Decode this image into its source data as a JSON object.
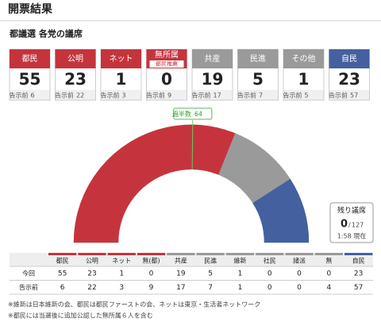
{
  "header": {
    "title": "開票結果"
  },
  "section": {
    "title": "都議選 各党の議席"
  },
  "prev_label": "告示前",
  "cards": [
    {
      "name": "都民",
      "seats": 55,
      "prev": 6,
      "color": "#c5343d"
    },
    {
      "name": "公明",
      "seats": 23,
      "prev": 22,
      "color": "#c5343d"
    },
    {
      "name": "ネット",
      "seats": 1,
      "prev": 3,
      "color": "#c5343d"
    },
    {
      "name": "無所属",
      "sub": "都民推薦",
      "seats": 0,
      "prev": 9,
      "color": "#c5343d"
    },
    {
      "name": "共産",
      "seats": 19,
      "prev": 17,
      "color": "#9a9a9a"
    },
    {
      "name": "民進",
      "seats": 5,
      "prev": 7,
      "color": "#9a9a9a"
    },
    {
      "name": "その他",
      "seats": 1,
      "prev": 5,
      "color": "#9a9a9a"
    },
    {
      "name": "自民",
      "seats": 23,
      "prev": 57,
      "color": "#44609f"
    }
  ],
  "majority": {
    "label": "過半数",
    "value": 64
  },
  "remaining": {
    "title": "残り議席",
    "value": 0,
    "separator": "/",
    "total": 127,
    "time": "1:58 現在"
  },
  "table": {
    "columns": [
      "都民",
      "公明",
      "ネット",
      "無(都)",
      "共産",
      "民進",
      "維新",
      "社民",
      "諸派",
      "無",
      "自民"
    ],
    "column_colors": [
      "#c5343d",
      "#c5343d",
      "#c5343d",
      "#c5343d",
      "#9a9a9a",
      "#9a9a9a",
      "#9a9a9a",
      "#9a9a9a",
      "#9a9a9a",
      "#9a9a9a",
      "#44609f"
    ],
    "rows": [
      {
        "label": "今回",
        "values": [
          55,
          23,
          1,
          0,
          19,
          5,
          1,
          0,
          0,
          0,
          23
        ]
      },
      {
        "label": "告示前",
        "values": [
          6,
          22,
          3,
          9,
          17,
          7,
          1,
          0,
          0,
          4,
          57
        ]
      }
    ]
  },
  "notes": [
    "※維新は日本維新の会、都民は都民ファーストの会、ネットは東京・生活者ネットワーク",
    "※都民には当選後に追加公認した無所属６人を含む"
  ]
}
